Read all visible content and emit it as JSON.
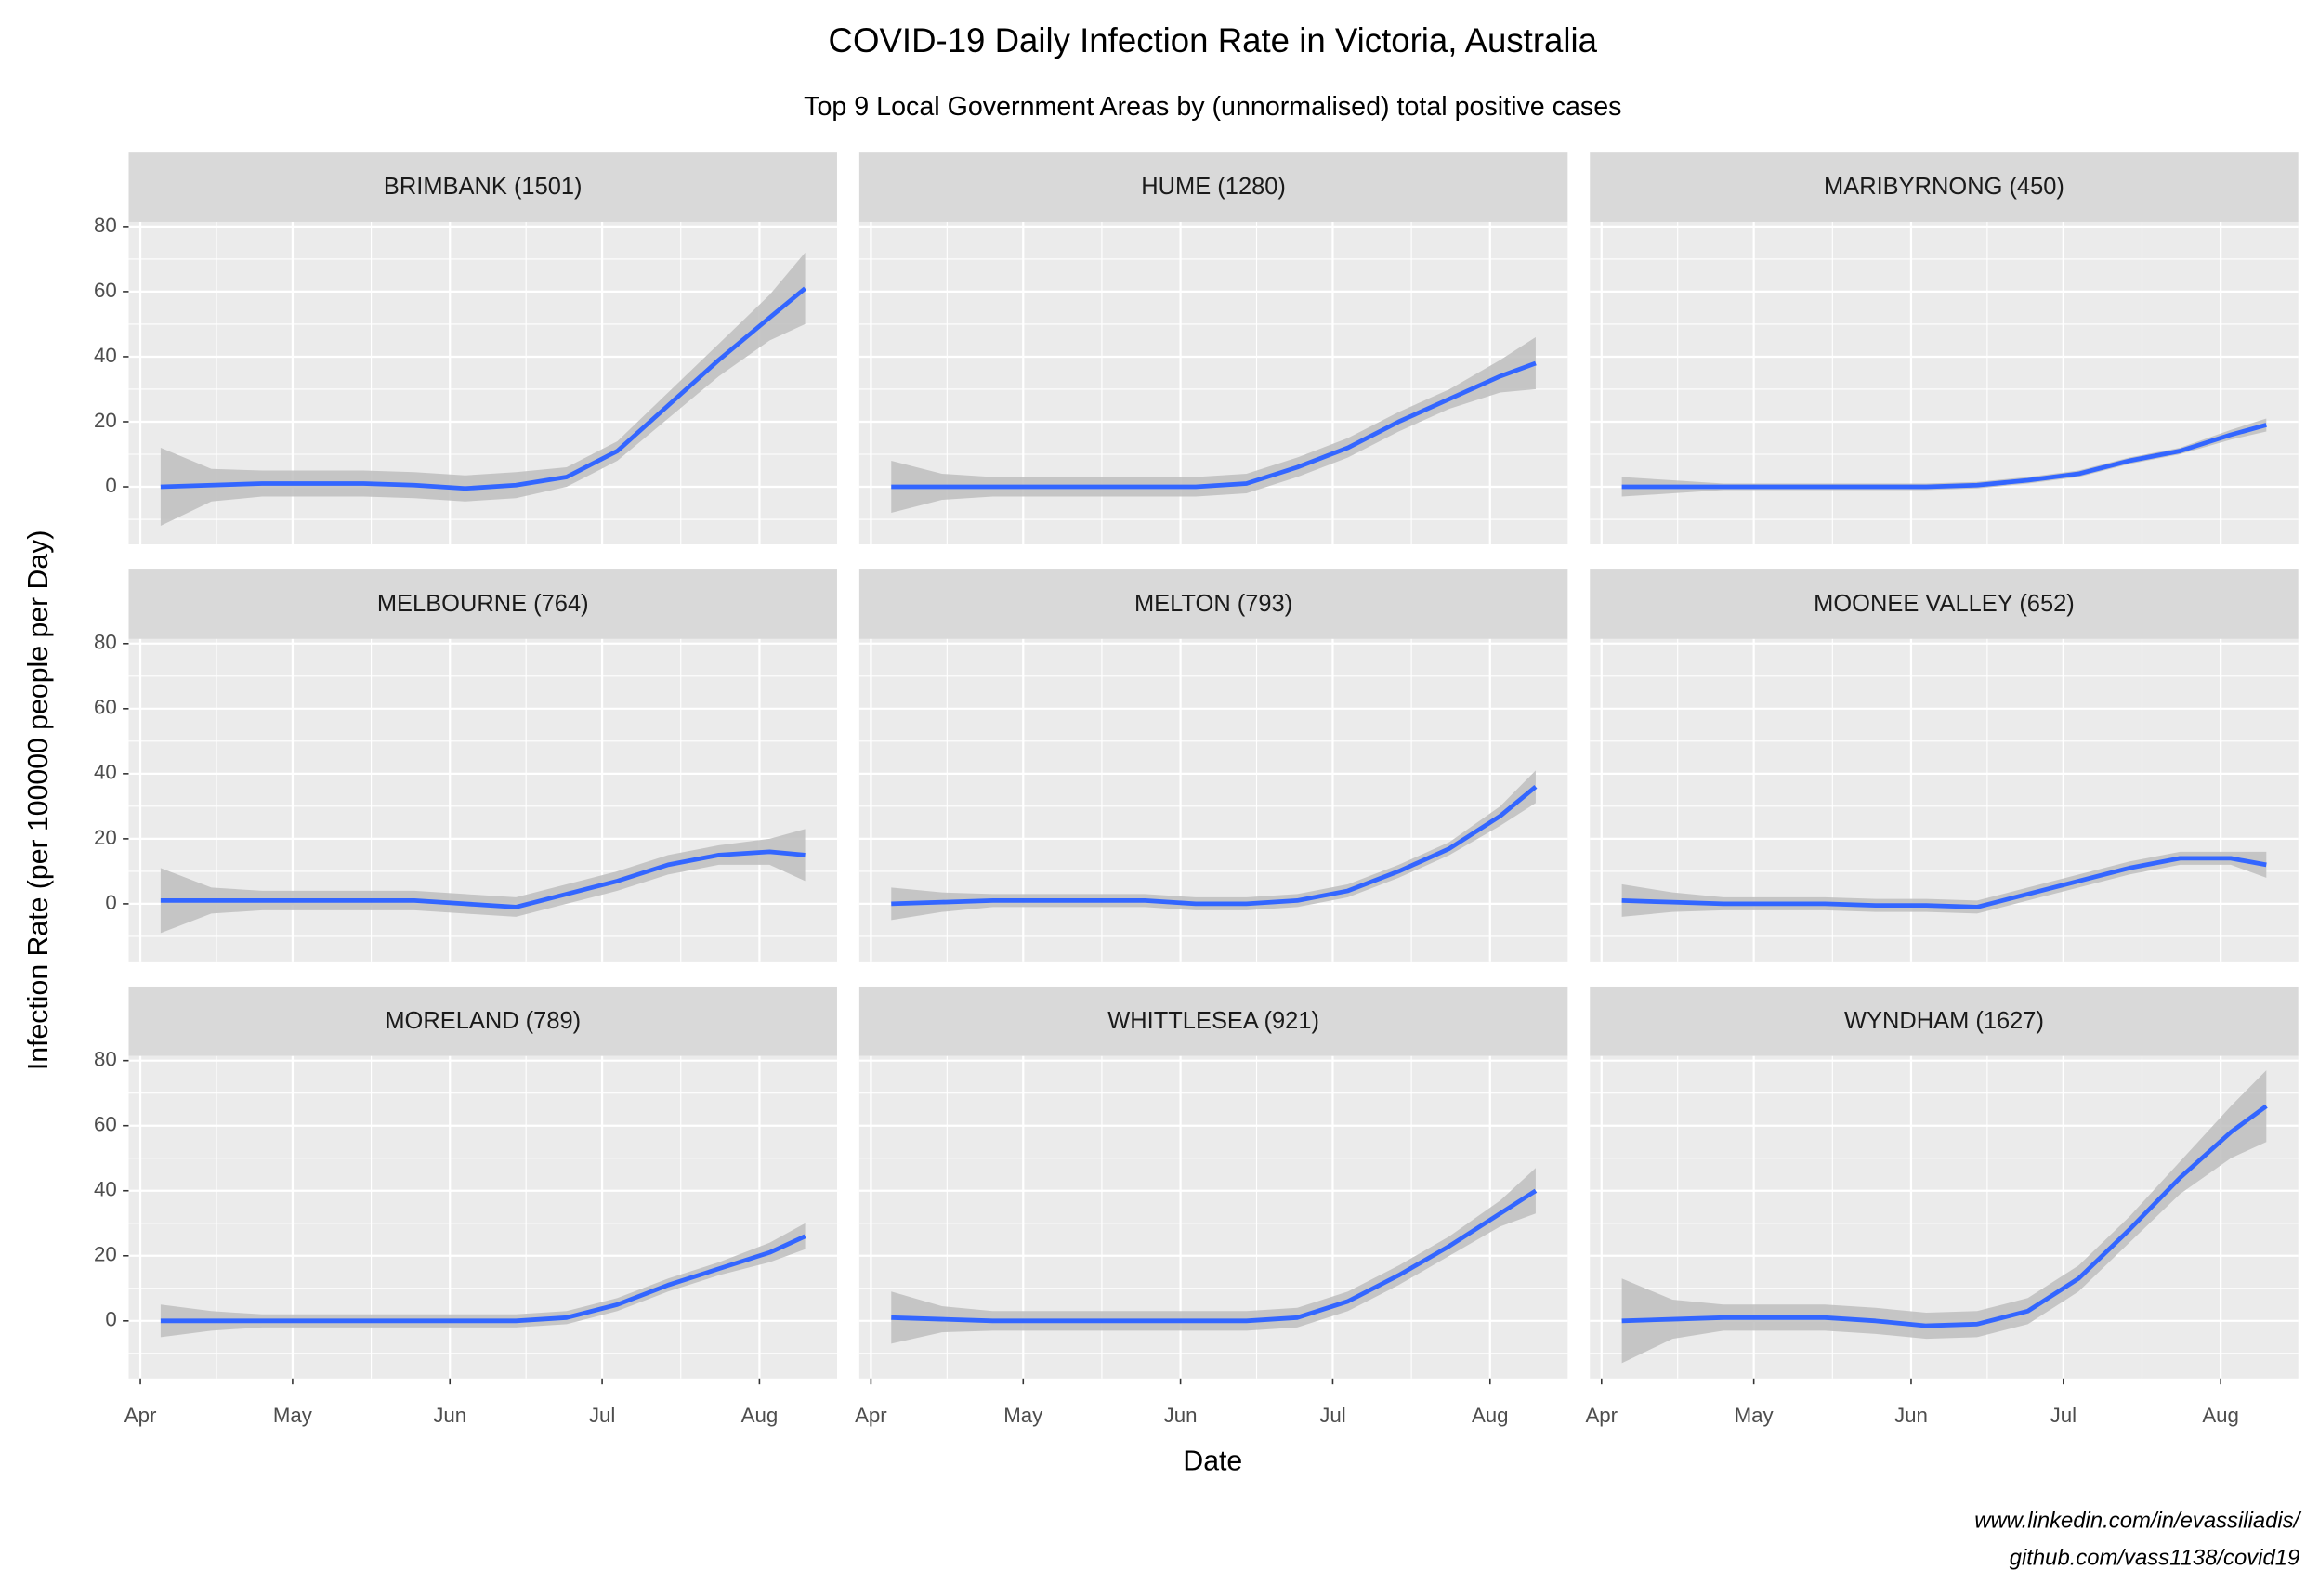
{
  "title": "COVID-19 Daily Infection Rate in Victoria, Australia",
  "subtitle": "Top 9 Local Government Areas by (unnormalised) total positive cases",
  "x_label": "Date",
  "y_label": "Infection Rate (per 100000 people per Day)",
  "caption": [
    "www.linkedin.com/in/evassiliadis/",
    "github.com/vass1138/covid19"
  ],
  "chart_data": [
    {
      "type": "line",
      "title": "BRIMBANK (1501)",
      "x": [
        96,
        106,
        116,
        126,
        136,
        146,
        156,
        166,
        176,
        186,
        196,
        206,
        216,
        223
      ],
      "xlim": [
        89.7,
        229.3
      ],
      "xticks": [
        {
          "value": 92,
          "label": "Apr"
        },
        {
          "value": 122,
          "label": "May"
        },
        {
          "value": 153,
          "label": "Jun"
        },
        {
          "value": 183,
          "label": "Jul"
        },
        {
          "value": 214,
          "label": "Aug"
        }
      ],
      "ylim": [
        -17.7,
        81.4
      ],
      "yticks": [
        0,
        20,
        40,
        60,
        80
      ],
      "grid": true,
      "band_color": "#bebebe",
      "series": [
        {
          "color": "#3366ff",
          "values": [
            0,
            0.5,
            1,
            1,
            1,
            0.5,
            -0.5,
            0.5,
            3,
            11,
            25,
            39,
            52,
            61
          ],
          "lower": [
            -12,
            -4.5,
            -3,
            -3,
            -3,
            -3.5,
            -4.5,
            -3.5,
            0,
            8,
            21,
            34,
            45,
            50
          ],
          "upper": [
            12,
            5.5,
            5,
            5,
            5,
            4.5,
            3.5,
            4.5,
            6,
            14,
            29,
            44,
            59,
            72
          ]
        }
      ]
    },
    {
      "type": "line",
      "title": "HUME (1280)",
      "x": [
        96,
        106,
        116,
        126,
        136,
        146,
        156,
        166,
        176,
        186,
        196,
        206,
        216,
        223
      ],
      "xlim": [
        89.7,
        229.3
      ],
      "xticks": [
        {
          "value": 92,
          "label": "Apr"
        },
        {
          "value": 122,
          "label": "May"
        },
        {
          "value": 153,
          "label": "Jun"
        },
        {
          "value": 183,
          "label": "Jul"
        },
        {
          "value": 214,
          "label": "Aug"
        }
      ],
      "ylim": [
        -17.7,
        81.4
      ],
      "yticks": [
        0,
        20,
        40,
        60,
        80
      ],
      "grid": true,
      "band_color": "#bebebe",
      "series": [
        {
          "color": "#3366ff",
          "values": [
            0,
            0,
            0,
            0,
            0,
            0,
            0,
            1,
            6,
            12,
            20,
            27,
            34,
            38
          ],
          "lower": [
            -8,
            -4,
            -3,
            -3,
            -3,
            -3,
            -3,
            -2,
            3,
            9,
            17,
            24,
            29,
            30
          ],
          "upper": [
            8,
            4,
            3,
            3,
            3,
            3,
            3,
            4,
            9,
            15,
            23,
            30,
            39,
            46
          ]
        }
      ]
    },
    {
      "type": "line",
      "title": "MARIBYRNONG (450)",
      "x": [
        96,
        106,
        116,
        126,
        136,
        146,
        156,
        166,
        176,
        186,
        196,
        206,
        216,
        223
      ],
      "xlim": [
        89.7,
        229.3
      ],
      "xticks": [
        {
          "value": 92,
          "label": "Apr"
        },
        {
          "value": 122,
          "label": "May"
        },
        {
          "value": 153,
          "label": "Jun"
        },
        {
          "value": 183,
          "label": "Jul"
        },
        {
          "value": 214,
          "label": "Aug"
        }
      ],
      "ylim": [
        -17.7,
        81.4
      ],
      "yticks": [
        0,
        20,
        40,
        60,
        80
      ],
      "grid": true,
      "band_color": "#bebebe",
      "series": [
        {
          "color": "#3366ff",
          "values": [
            0,
            0,
            0,
            0,
            0,
            0,
            0,
            0.5,
            2,
            4,
            8,
            11,
            16,
            19
          ],
          "lower": [
            -3,
            -2,
            -1,
            -1,
            -1,
            -1,
            -1,
            -0.5,
            1,
            3,
            7,
            10,
            14.5,
            17
          ],
          "upper": [
            3,
            2,
            1,
            1,
            1,
            1,
            1,
            1.5,
            3,
            5,
            9,
            12,
            17.5,
            21
          ]
        }
      ]
    },
    {
      "type": "line",
      "title": "MELBOURNE (764)",
      "x": [
        96,
        106,
        116,
        126,
        136,
        146,
        156,
        166,
        176,
        186,
        196,
        206,
        216,
        223
      ],
      "xlim": [
        89.7,
        229.3
      ],
      "xticks": [
        {
          "value": 92,
          "label": "Apr"
        },
        {
          "value": 122,
          "label": "May"
        },
        {
          "value": 153,
          "label": "Jun"
        },
        {
          "value": 183,
          "label": "Jul"
        },
        {
          "value": 214,
          "label": "Aug"
        }
      ],
      "ylim": [
        -17.7,
        81.4
      ],
      "yticks": [
        0,
        20,
        40,
        60,
        80
      ],
      "grid": true,
      "band_color": "#bebebe",
      "series": [
        {
          "color": "#3366ff",
          "values": [
            1,
            1,
            1,
            1,
            1,
            1,
            0,
            -1,
            3,
            7,
            12,
            15,
            16,
            15
          ],
          "lower": [
            -9,
            -3,
            -2,
            -2,
            -2,
            -2,
            -3,
            -4,
            0,
            4,
            9,
            12,
            12,
            7
          ],
          "upper": [
            11,
            5,
            4,
            4,
            4,
            4,
            3,
            2,
            6,
            10,
            15,
            18,
            20,
            23
          ]
        }
      ]
    },
    {
      "type": "line",
      "title": "MELTON (793)",
      "x": [
        96,
        106,
        116,
        126,
        136,
        146,
        156,
        166,
        176,
        186,
        196,
        206,
        216,
        223
      ],
      "xlim": [
        89.7,
        229.3
      ],
      "xticks": [
        {
          "value": 92,
          "label": "Apr"
        },
        {
          "value": 122,
          "label": "May"
        },
        {
          "value": 153,
          "label": "Jun"
        },
        {
          "value": 183,
          "label": "Jul"
        },
        {
          "value": 214,
          "label": "Aug"
        }
      ],
      "ylim": [
        -17.7,
        81.4
      ],
      "yticks": [
        0,
        20,
        40,
        60,
        80
      ],
      "grid": true,
      "band_color": "#bebebe",
      "series": [
        {
          "color": "#3366ff",
          "values": [
            0,
            0.5,
            1,
            1,
            1,
            1,
            0,
            0,
            1,
            4,
            10,
            17,
            27,
            36
          ],
          "lower": [
            -5,
            -2.5,
            -1,
            -1,
            -1,
            -1,
            -2,
            -2,
            -1,
            2,
            8,
            15,
            24,
            31
          ],
          "upper": [
            5,
            3.5,
            3,
            3,
            3,
            3,
            2,
            2,
            3,
            6,
            12,
            19,
            30,
            41
          ]
        }
      ]
    },
    {
      "type": "line",
      "title": "MOONEE VALLEY (652)",
      "x": [
        96,
        106,
        116,
        126,
        136,
        146,
        156,
        166,
        176,
        186,
        196,
        206,
        216,
        223
      ],
      "xlim": [
        89.7,
        229.3
      ],
      "xticks": [
        {
          "value": 92,
          "label": "Apr"
        },
        {
          "value": 122,
          "label": "May"
        },
        {
          "value": 153,
          "label": "Jun"
        },
        {
          "value": 183,
          "label": "Jul"
        },
        {
          "value": 214,
          "label": "Aug"
        }
      ],
      "ylim": [
        -17.7,
        81.4
      ],
      "yticks": [
        0,
        20,
        40,
        60,
        80
      ],
      "grid": true,
      "band_color": "#bebebe",
      "series": [
        {
          "color": "#3366ff",
          "values": [
            1,
            0.5,
            0,
            0,
            0,
            -0.5,
            -0.5,
            -1,
            3,
            7,
            11,
            14,
            14,
            12
          ],
          "lower": [
            -4,
            -2.5,
            -2,
            -2,
            -2,
            -2.5,
            -2.5,
            -3,
            1,
            5,
            9,
            12,
            12,
            8
          ],
          "upper": [
            6,
            3.5,
            2,
            2,
            2,
            1.5,
            1.5,
            1,
            5,
            9,
            13,
            16,
            16,
            16
          ]
        }
      ]
    },
    {
      "type": "line",
      "title": "MORELAND (789)",
      "x": [
        96,
        106,
        116,
        126,
        136,
        146,
        156,
        166,
        176,
        186,
        196,
        206,
        216,
        223
      ],
      "xlim": [
        89.7,
        229.3
      ],
      "xticks": [
        {
          "value": 92,
          "label": "Apr"
        },
        {
          "value": 122,
          "label": "May"
        },
        {
          "value": 153,
          "label": "Jun"
        },
        {
          "value": 183,
          "label": "Jul"
        },
        {
          "value": 214,
          "label": "Aug"
        }
      ],
      "ylim": [
        -17.7,
        81.4
      ],
      "yticks": [
        0,
        20,
        40,
        60,
        80
      ],
      "grid": true,
      "band_color": "#bebebe",
      "series": [
        {
          "color": "#3366ff",
          "values": [
            0,
            0,
            0,
            0,
            0,
            0,
            0,
            0,
            1,
            5,
            11,
            16,
            21,
            26
          ],
          "lower": [
            -5,
            -3,
            -2,
            -2,
            -2,
            -2,
            -2,
            -2,
            -1,
            3,
            9,
            14,
            18,
            22
          ],
          "upper": [
            5,
            3,
            2,
            2,
            2,
            2,
            2,
            2,
            3,
            7,
            13,
            18,
            24,
            30
          ]
        }
      ]
    },
    {
      "type": "line",
      "title": "WHITTLESEA (921)",
      "x": [
        96,
        106,
        116,
        126,
        136,
        146,
        156,
        166,
        176,
        186,
        196,
        206,
        216,
        223
      ],
      "xlim": [
        89.7,
        229.3
      ],
      "xticks": [
        {
          "value": 92,
          "label": "Apr"
        },
        {
          "value": 122,
          "label": "May"
        },
        {
          "value": 153,
          "label": "Jun"
        },
        {
          "value": 183,
          "label": "Jul"
        },
        {
          "value": 214,
          "label": "Aug"
        }
      ],
      "ylim": [
        -17.7,
        81.4
      ],
      "yticks": [
        0,
        20,
        40,
        60,
        80
      ],
      "grid": true,
      "band_color": "#bebebe",
      "series": [
        {
          "color": "#3366ff",
          "values": [
            1,
            0.5,
            0,
            0,
            0,
            0,
            0,
            0,
            1,
            6,
            14,
            23,
            33,
            40
          ],
          "lower": [
            -7,
            -3.5,
            -3,
            -3,
            -3,
            -3,
            -3,
            -3,
            -2,
            3,
            11,
            20,
            29,
            33
          ],
          "upper": [
            9,
            4.5,
            3,
            3,
            3,
            3,
            3,
            3,
            4,
            9,
            17,
            26,
            37,
            47
          ]
        }
      ]
    },
    {
      "type": "line",
      "title": "WYNDHAM (1627)",
      "x": [
        96,
        106,
        116,
        126,
        136,
        146,
        156,
        166,
        176,
        186,
        196,
        206,
        216,
        223
      ],
      "xlim": [
        89.7,
        229.3
      ],
      "xticks": [
        {
          "value": 92,
          "label": "Apr"
        },
        {
          "value": 122,
          "label": "May"
        },
        {
          "value": 153,
          "label": "Jun"
        },
        {
          "value": 183,
          "label": "Jul"
        },
        {
          "value": 214,
          "label": "Aug"
        }
      ],
      "ylim": [
        -17.7,
        81.4
      ],
      "yticks": [
        0,
        20,
        40,
        60,
        80
      ],
      "grid": true,
      "band_color": "#bebebe",
      "series": [
        {
          "color": "#3366ff",
          "values": [
            0,
            0.5,
            1,
            1,
            1,
            0,
            -1.5,
            -1,
            3,
            13,
            28,
            44,
            58,
            66
          ],
          "lower": [
            -13,
            -5.5,
            -3,
            -3,
            -3,
            -4,
            -5.5,
            -5,
            -1,
            9,
            24,
            39,
            50,
            55
          ],
          "upper": [
            13,
            6.5,
            5,
            5,
            5,
            4,
            2.5,
            3,
            7,
            17,
            32,
            49,
            66,
            77
          ]
        }
      ]
    }
  ]
}
